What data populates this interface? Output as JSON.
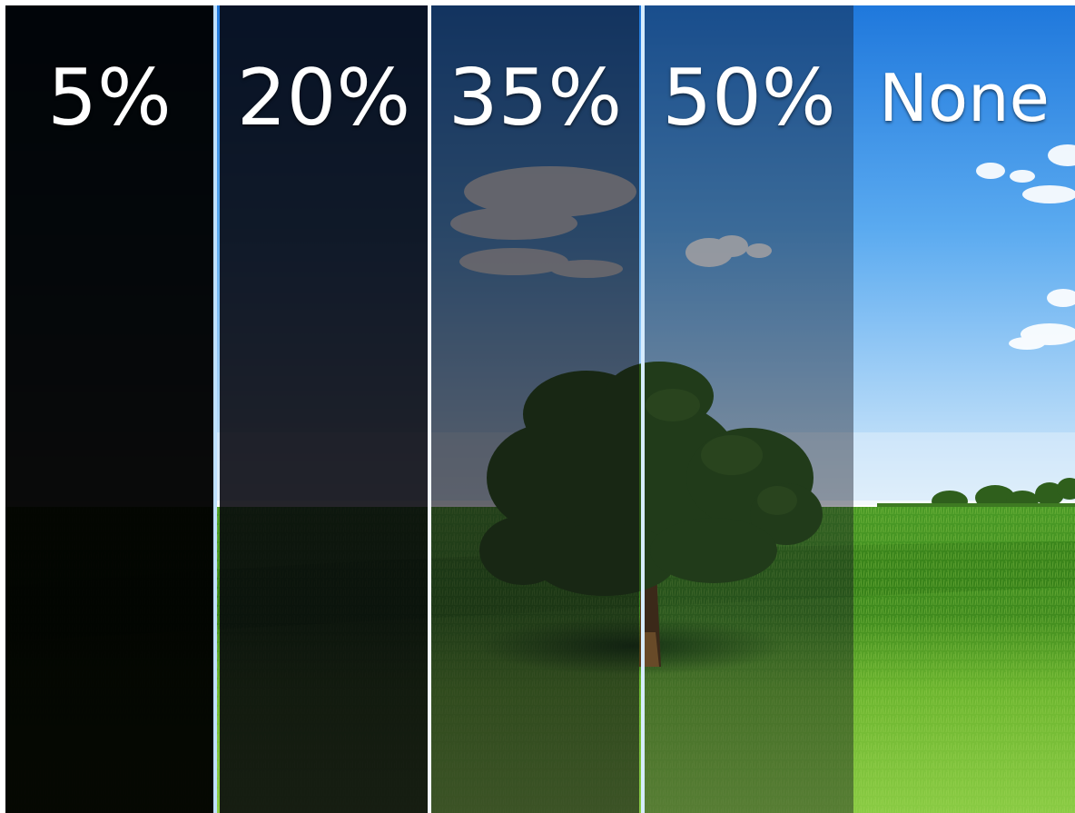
{
  "tints": [
    {
      "label": "5%",
      "transmission": 0.05,
      "color": "#000000",
      "opacity": 0.96
    },
    {
      "label": "20%",
      "transmission": 0.2,
      "color": "#05030a",
      "opacity": 0.87
    },
    {
      "label": "35%",
      "transmission": 0.35,
      "color": "#0b0a14",
      "opacity": 0.62
    },
    {
      "label": "50%",
      "transmission": 0.5,
      "color": "#10141f",
      "opacity": 0.42
    },
    {
      "label": "None",
      "transmission": 1.0,
      "color": "#000000",
      "opacity": 0.0
    }
  ],
  "colors": {
    "sky_top": "#1f7fe0",
    "sky_bottom": "#d6ecfb",
    "grass_far": "#4f9a2a",
    "grass_near": "#7ec23a",
    "tree_foliage": "#2e5a1a",
    "divider": "#cfe6ff"
  }
}
